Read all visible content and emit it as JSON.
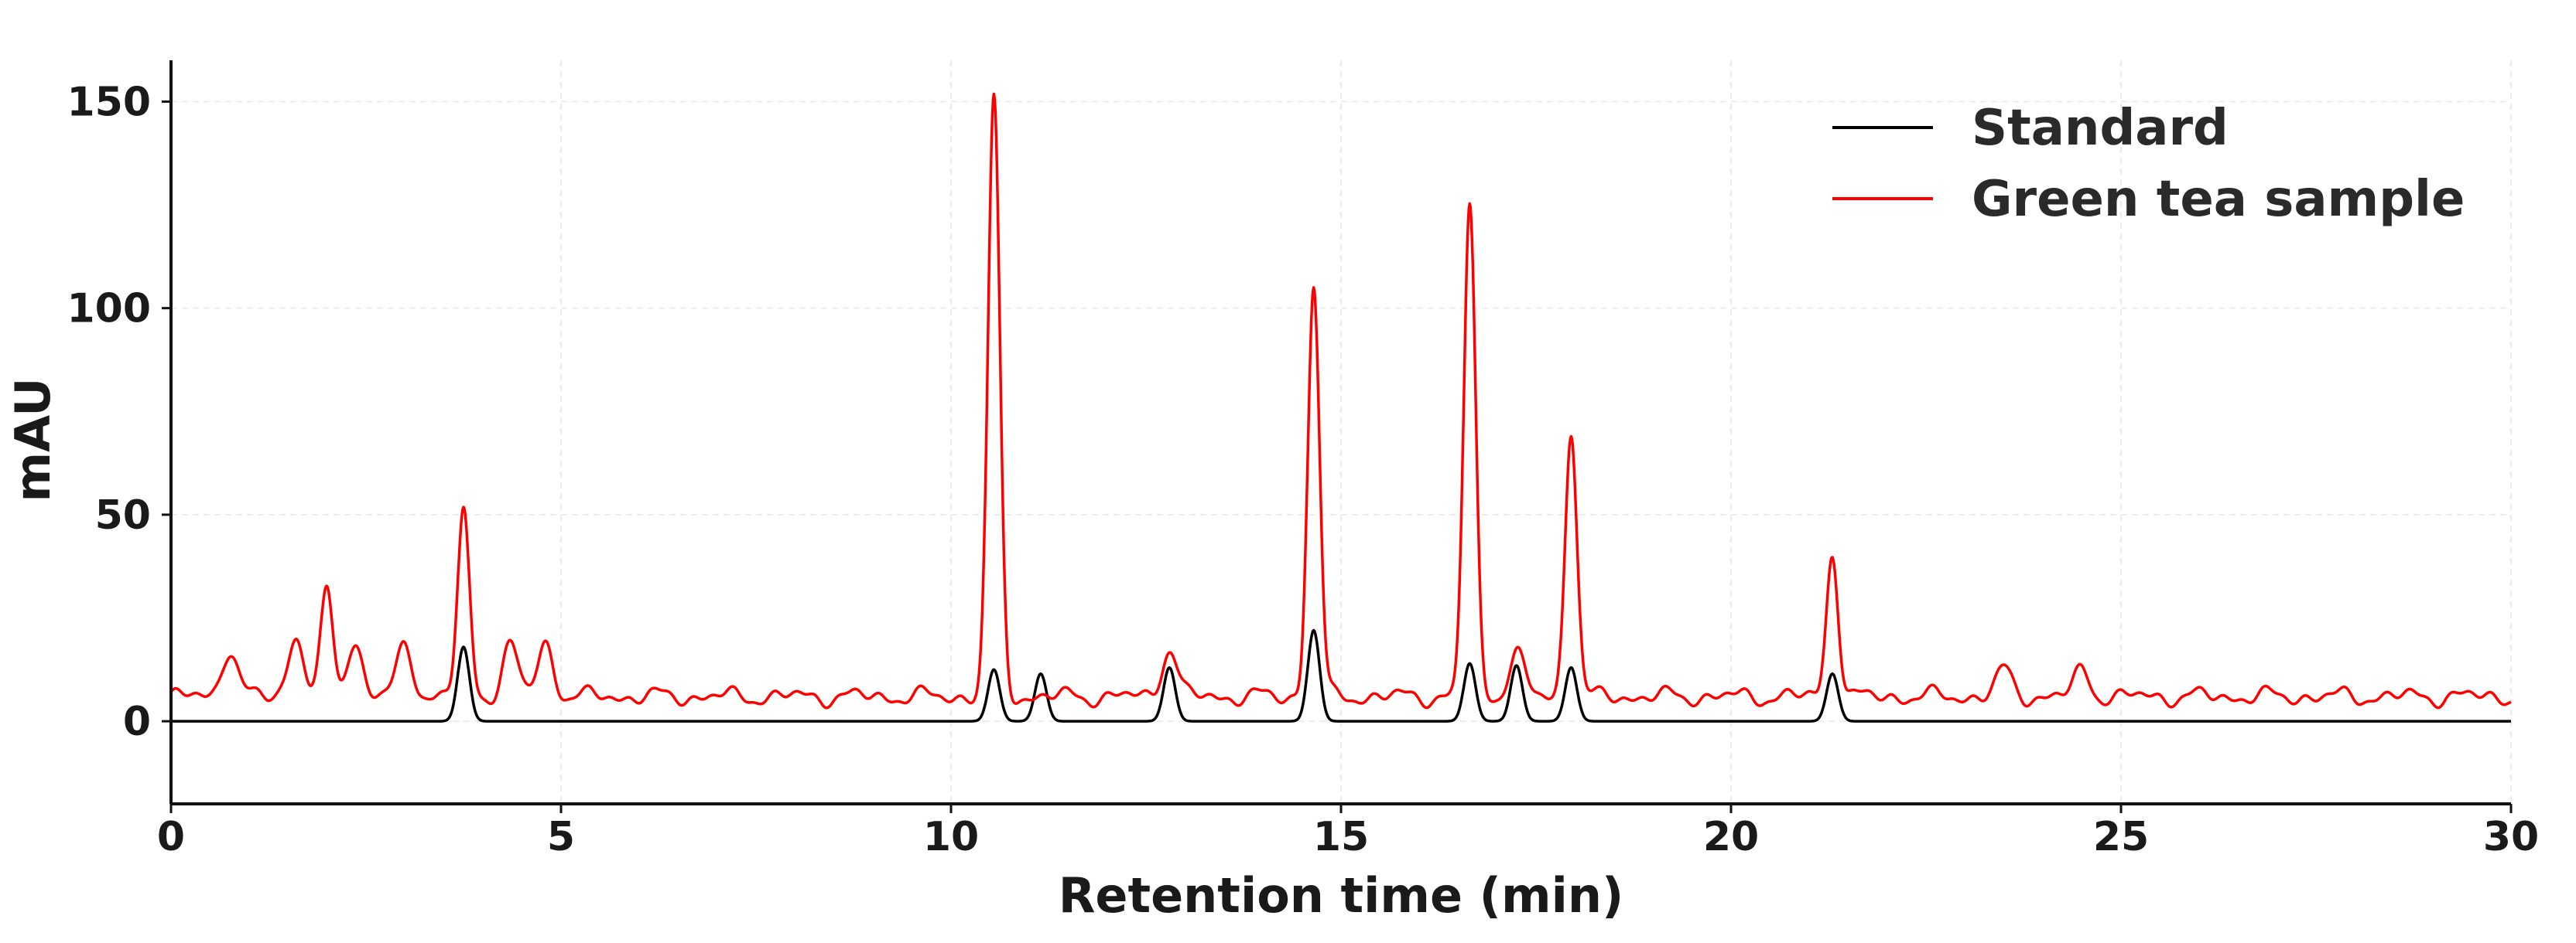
{
  "chart_data": {
    "type": "line",
    "title": "",
    "xlabel": "Retention time (min)",
    "ylabel": "mAU",
    "xlim": [
      0,
      30
    ],
    "ylim": [
      -20,
      160
    ],
    "xticks": [
      0,
      5,
      10,
      15,
      20,
      25,
      30
    ],
    "yticks": [
      0,
      50,
      100,
      150
    ],
    "grid": true,
    "legend_position": "top-right",
    "series": [
      {
        "name": "Standard",
        "color": "#000000",
        "baseline": 0,
        "peaks": [
          {
            "rt": 3.75,
            "height": 18
          },
          {
            "rt": 10.55,
            "height": 12.5
          },
          {
            "rt": 11.15,
            "height": 11.5
          },
          {
            "rt": 12.8,
            "height": 13
          },
          {
            "rt": 14.65,
            "height": 22
          },
          {
            "rt": 16.65,
            "height": 14
          },
          {
            "rt": 17.25,
            "height": 13.5
          },
          {
            "rt": 17.95,
            "height": 13
          },
          {
            "rt": 21.3,
            "height": 11.5
          }
        ]
      },
      {
        "name": "Green tea sample",
        "color": "#ff0000",
        "baseline": 6,
        "peaks": [
          {
            "rt": 0.75,
            "height": 13.5
          },
          {
            "rt": 1.6,
            "height": 16.5
          },
          {
            "rt": 2.0,
            "height": 27
          },
          {
            "rt": 2.35,
            "height": 15
          },
          {
            "rt": 3.0,
            "height": 14
          },
          {
            "rt": 3.75,
            "height": 46
          },
          {
            "rt": 4.35,
            "height": 14
          },
          {
            "rt": 4.8,
            "height": 14.5
          },
          {
            "rt": 10.55,
            "height": 146
          },
          {
            "rt": 12.8,
            "height": 13.5
          },
          {
            "rt": 14.65,
            "height": 101
          },
          {
            "rt": 16.65,
            "height": 121
          },
          {
            "rt": 17.25,
            "height": 12
          },
          {
            "rt": 17.95,
            "height": 67
          },
          {
            "rt": 21.3,
            "height": 37
          },
          {
            "rt": 23.5,
            "height": 8
          },
          {
            "rt": 24.5,
            "height": 8
          }
        ]
      }
    ]
  }
}
